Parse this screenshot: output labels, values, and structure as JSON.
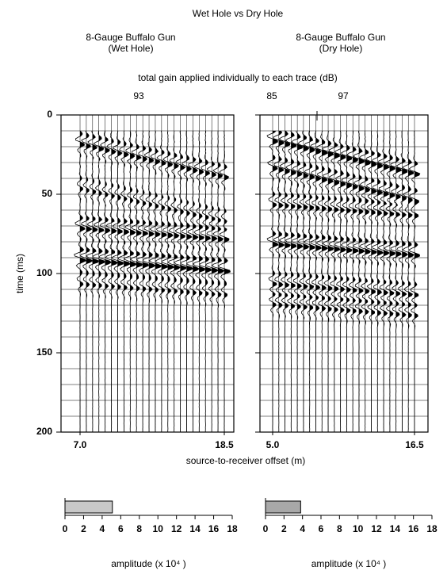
{
  "chart_data": {
    "type": "seismic",
    "title": "Wet Hole vs Dry Hole",
    "gain_label": "total gain applied individually to each trace (dB)",
    "x_label": "source-to-receiver offset (m)",
    "y_label": "time (ms)",
    "ylim": [
      0,
      200
    ],
    "yticks": [
      0,
      50,
      100,
      150,
      200
    ],
    "panels": [
      {
        "subtitle": [
          "8-Gauge Buffalo Gun",
          "(Wet Hole)"
        ],
        "gains": [
          93
        ],
        "xlim": [
          7.0,
          18.5
        ],
        "xticks": [
          {
            "value": 7.0,
            "label": "7.0"
          },
          {
            "value": 18.5,
            "label": "18.5"
          }
        ],
        "amplitude": {
          "type": "bar",
          "value": 5.1,
          "color": "#c8c8c8",
          "xlim": [
            0,
            18
          ],
          "xticks": [
            0,
            2,
            4,
            6,
            8,
            10,
            12,
            14,
            16,
            18
          ],
          "x_label": "amplitude (x 10⁴ )"
        }
      },
      {
        "subtitle": [
          "8-Gauge Buffalo Gun",
          "(Dry Hole)"
        ],
        "gains": [
          85,
          97
        ],
        "xlim": [
          5.0,
          16.5
        ],
        "xticks": [
          {
            "value": 5.0,
            "label": "5.0"
          },
          {
            "value": 16.5,
            "label": "16.5"
          }
        ],
        "amplitude": {
          "type": "bar",
          "value": 3.8,
          "color": "#a8a8a8",
          "xlim": [
            0,
            18
          ],
          "xticks": [
            0,
            2,
            4,
            6,
            8,
            10,
            12,
            14,
            16,
            18
          ],
          "x_label": "amplitude (x 10⁴ )"
        }
      }
    ]
  }
}
